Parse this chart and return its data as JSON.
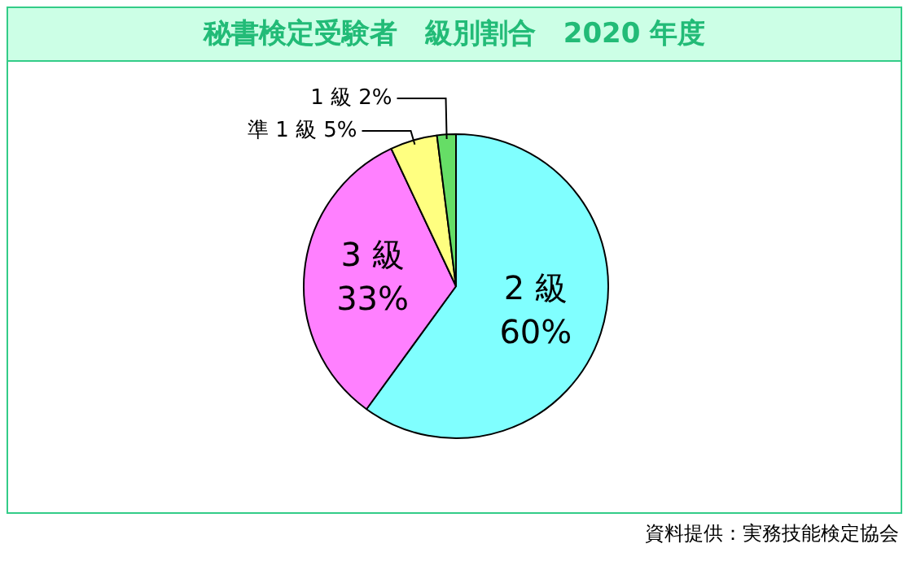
{
  "chart_data": {
    "type": "pie",
    "title": "秘書検定受験者　級別割合　2020 年度",
    "categories": [
      "2 級",
      "3 級",
      "準 1 級",
      "1 級"
    ],
    "values": [
      60,
      33,
      5,
      2
    ],
    "value_labels": [
      "60%",
      "33%",
      "5%",
      "2%"
    ],
    "colors": [
      "#80ffff",
      "#ff80ff",
      "#ffff80",
      "#66dd66"
    ],
    "annotations": [
      "資料提供：実務技能検定協会"
    ]
  }
}
